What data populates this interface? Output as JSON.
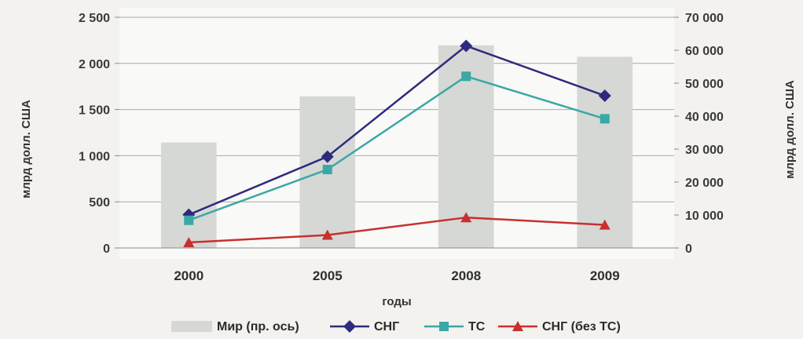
{
  "chart_data": {
    "type": "bar",
    "categories": [
      "2000",
      "2005",
      "2008",
      "2009"
    ],
    "xlabel": "годы",
    "ylabel_left": "млрд долл. США",
    "ylabel_right": "млрд долл. США",
    "ylim_left": [
      0,
      2500
    ],
    "ylim_right": [
      0,
      70000
    ],
    "yticks_left": [
      "0",
      "500",
      "1 000",
      "1 500",
      "2 000",
      "2 500"
    ],
    "yticks_right": [
      "0",
      "10 000",
      "20 000",
      "30 000",
      "40 000",
      "50 000",
      "60 000",
      "70 000"
    ],
    "grid": true,
    "legend_position": "bottom",
    "series": [
      {
        "name": "Мир (пр. ось)",
        "kind": "bar",
        "axis": "right",
        "color": "#d6d8d5",
        "values": [
          32000,
          46000,
          61500,
          58000
        ]
      },
      {
        "name": "СНГ",
        "kind": "line",
        "axis": "left",
        "color": "#2e2a7e",
        "marker": "diamond",
        "values": [
          360,
          990,
          2190,
          1650
        ]
      },
      {
        "name": "ТС",
        "kind": "line",
        "axis": "left",
        "color": "#3aa8a6",
        "marker": "square",
        "values": [
          300,
          850,
          1860,
          1400
        ]
      },
      {
        "name": "СНГ (без ТС)",
        "kind": "line",
        "axis": "left",
        "color": "#c8302e",
        "marker": "triangle",
        "values": [
          60,
          140,
          330,
          250
        ]
      }
    ]
  }
}
